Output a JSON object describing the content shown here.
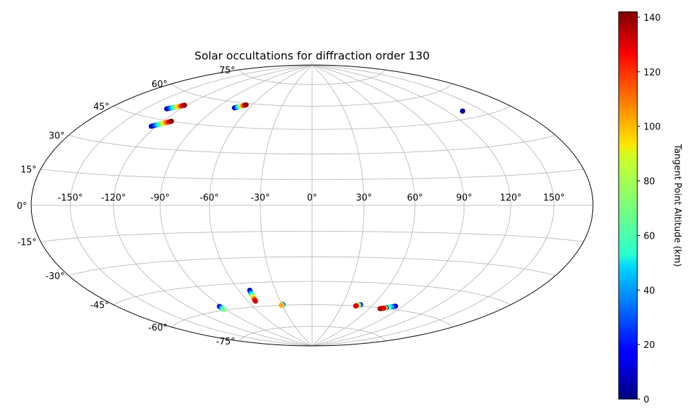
{
  "chart_data": {
    "type": "scatter",
    "projection": "aitoff-hammer",
    "title": "Solar occultations for diffraction order 130",
    "x_tick_labels": [
      "-150°",
      "-120°",
      "-90°",
      "-60°",
      "-30°",
      "0°",
      "30°",
      "60°",
      "90°",
      "120°",
      "150°"
    ],
    "x_ticks": [
      -150,
      -120,
      -90,
      -60,
      -30,
      0,
      30,
      60,
      90,
      120,
      150
    ],
    "y_tick_labels": [
      "-75°",
      "-60°",
      "-45°",
      "-30°",
      "-15°",
      "0°",
      "15°",
      "30°",
      "45°",
      "60°",
      "75°"
    ],
    "y_ticks": [
      -75,
      -60,
      -45,
      -30,
      -15,
      0,
      15,
      30,
      45,
      60,
      75
    ],
    "grid": true,
    "colorbar": {
      "label": "Tangent Point Altitude (km)",
      "colormap": "jet",
      "range": [
        0,
        142
      ],
      "ticks": [
        0,
        20,
        40,
        60,
        80,
        100,
        120,
        140
      ],
      "tick_labels": [
        "0",
        "20",
        "40",
        "60",
        "80",
        "100",
        "120",
        "140"
      ]
    },
    "tracks": [
      {
        "lon_start": -132,
        "lat_start": 50.5,
        "alt_start": 0,
        "lon_end": -122,
        "lat_end": 54,
        "alt_end": 140
      },
      {
        "lon_start": -124,
        "lat_start": 41,
        "alt_start": 0,
        "lon_end": -113,
        "lat_end": 45,
        "alt_end": 140
      },
      {
        "lon_start": -74,
        "lat_start": 56.5,
        "alt_start": 0,
        "lon_end": -66,
        "lat_end": 59,
        "alt_end": 140
      },
      {
        "lon_start": 133,
        "lat_start": 49,
        "alt_start": 0,
        "lon_end": 133,
        "lat_end": 49,
        "alt_end": 5
      },
      {
        "lon_start": -92,
        "lat_start": -57.5,
        "alt_start": 0,
        "lon_end": -92,
        "lat_end": -59.5,
        "alt_end": 70
      },
      {
        "lon_start": -51,
        "lat_start": -49.5,
        "alt_start": 0,
        "lon_end": -53,
        "lat_end": -56.5,
        "alt_end": 130
      },
      {
        "lon_start": -29,
        "lat_start": -59.5,
        "alt_start": 0,
        "lon_end": -31,
        "lat_end": -60,
        "alt_end": 100
      },
      {
        "lon_start": 48,
        "lat_start": -59,
        "alt_start": 0,
        "lon_end": 44,
        "lat_end": -60,
        "alt_end": 130
      },
      {
        "lon_start": 83,
        "lat_start": -58,
        "alt_start": 0,
        "lon_end": 71,
        "lat_end": -60.5,
        "alt_end": 135
      },
      {
        "lon_start": 76,
        "lat_start": -59.5,
        "alt_start": 0,
        "lon_end": 74,
        "lat_end": -60,
        "alt_end": 130
      }
    ]
  }
}
